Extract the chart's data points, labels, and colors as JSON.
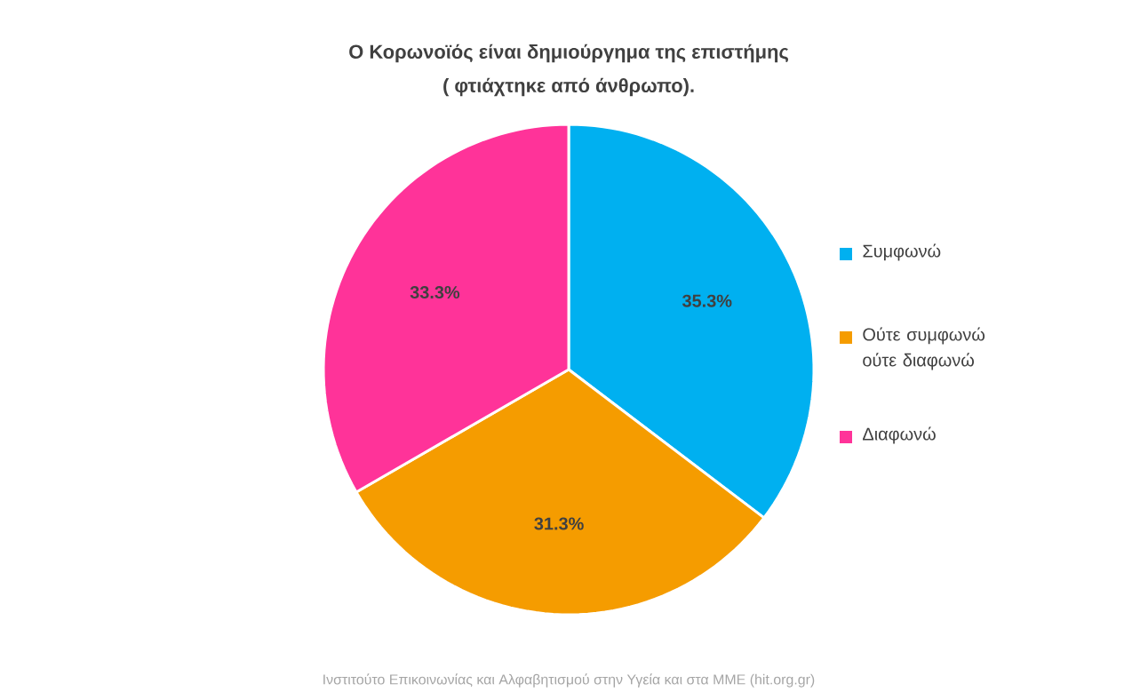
{
  "chart_data": {
    "type": "pie",
    "title": "Ο Κορωνοϊός είναι δημιούργημα της επιστήμης",
    "subtitle": "( φτιάχτηκε από άνθρωπο).",
    "categories": [
      "Συμφωνώ",
      "Ούτε συμφωνώ ούτε διαφωνώ",
      "Διαφωνώ"
    ],
    "values": [
      35.3,
      31.3,
      33.3
    ],
    "colors": [
      "#00b0f0",
      "#f59c00",
      "#ff3399"
    ],
    "value_labels": [
      "35.3%",
      "31.3%",
      "33.3%"
    ],
    "legend": "right",
    "annotations": [
      "Ινστιτούτο Επικοινωνίας και Αλφαβητισμού στην Υγεία και στα ΜΜΕ (hit.org.gr)"
    ]
  }
}
